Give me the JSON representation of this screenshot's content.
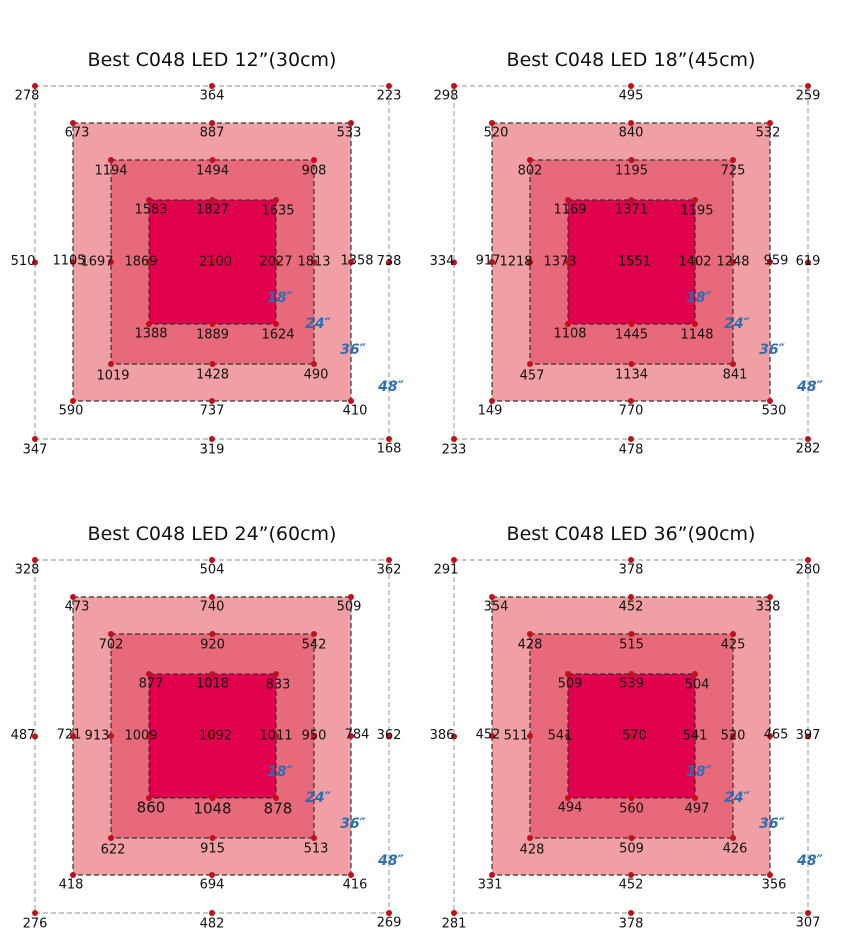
{
  "colors": {
    "ring48": "#ffffff",
    "ring36": "#f0a0a4",
    "ring24": "#e8697a",
    "ring18": "#e0004e",
    "dot": "#c0101a",
    "zone_label": "#2d6db4"
  },
  "zone_labels": [
    "18″",
    "24″",
    "36″",
    "48″"
  ],
  "panels": [
    {
      "title": "Best C048 LED 12”(30cm)",
      "r48": [
        "278",
        "364",
        "223",
        "738",
        "168",
        "319",
        "347",
        "510"
      ],
      "r36": [
        "673",
        "887",
        "533",
        "1358",
        "410",
        "737",
        "590",
        "1105"
      ],
      "r24": [
        "1194",
        "1494",
        "908",
        "1813",
        "490",
        "1428",
        "1019",
        "1697"
      ],
      "r18": [
        "1583",
        "1827",
        "1635",
        "2027",
        "1624",
        "1889",
        "1388",
        "1869"
      ],
      "center": "2100"
    },
    {
      "title": "Best C048 LED 18”(45cm)",
      "r48": [
        "298",
        "495",
        "259",
        "619",
        "282",
        "478",
        "233",
        "334"
      ],
      "r36": [
        "520",
        "840",
        "532",
        "959",
        "530",
        "770",
        "149",
        "917"
      ],
      "r24": [
        "802",
        "1195",
        "725",
        "1248",
        "841",
        "1134",
        "457",
        "1218"
      ],
      "r18": [
        "1169",
        "1371",
        "1195",
        "1402",
        "1148",
        "1445",
        "1108",
        "1373"
      ],
      "center": "1551"
    },
    {
      "title": "Best C048 LED 24”(60cm)",
      "r48": [
        "328",
        "504",
        "362",
        "362",
        "269",
        "482",
        "276",
        "487"
      ],
      "r36": [
        "473",
        "740",
        "509",
        "784",
        "416",
        "694",
        "418",
        "721"
      ],
      "r24": [
        "702",
        "920",
        "542",
        "950",
        "513",
        "915",
        "622",
        "913"
      ],
      "r18": [
        "877",
        "1018",
        "833",
        "1011",
        "878",
        "1048",
        "860",
        "1009"
      ],
      "center": "1092"
    },
    {
      "title": "Best C048 LED 36”(90cm)",
      "r48": [
        "291",
        "378",
        "280",
        "397",
        "307",
        "378",
        "281",
        "386"
      ],
      "r36": [
        "354",
        "452",
        "338",
        "465",
        "356",
        "452",
        "331",
        "452"
      ],
      "r24": [
        "428",
        "515",
        "425",
        "520",
        "426",
        "509",
        "428",
        "511"
      ],
      "r18": [
        "509",
        "539",
        "504",
        "541",
        "497",
        "560",
        "494",
        "541"
      ],
      "center": "570"
    }
  ]
}
